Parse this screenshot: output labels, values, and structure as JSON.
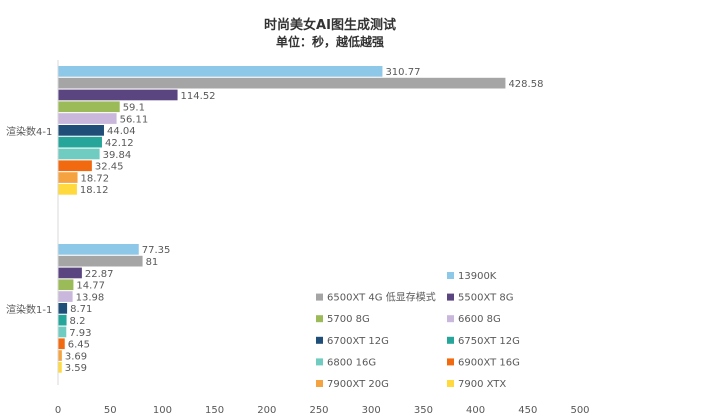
{
  "chart_data": {
    "type": "bar",
    "orientation": "horizontal",
    "title": "时尚美女AI图生成测试",
    "subtitle": "单位：秒，越低越强",
    "categories": [
      "渲染数4-1",
      "渲染数1-1"
    ],
    "xlim": [
      0,
      500
    ],
    "x_ticks": [
      "0",
      "50",
      "100",
      "150",
      "200",
      "250",
      "300",
      "350",
      "400",
      "450",
      "500"
    ],
    "grid": false,
    "legend_position": "bottom-right",
    "series": [
      {
        "name": "13900K",
        "color": "#8DC8E8",
        "values": [
          310.77,
          77.35
        ],
        "labels": [
          "310.77",
          "77.35"
        ]
      },
      {
        "name": "6500XT 4G 低显存模式",
        "color": "#A5A5A5",
        "values": [
          428.58,
          81
        ],
        "labels": [
          "428.58",
          "81"
        ]
      },
      {
        "name": "5500XT 8G",
        "color": "#5B4580",
        "values": [
          114.52,
          22.87
        ],
        "labels": [
          "114.52",
          "22.87"
        ]
      },
      {
        "name": "5700 8G",
        "color": "#9BBB59",
        "values": [
          59.1,
          14.77
        ],
        "labels": [
          "59.1",
          "14.77"
        ]
      },
      {
        "name": "6600 8G",
        "color": "#C9B8DC",
        "values": [
          56.11,
          13.98
        ],
        "labels": [
          "56.11",
          "13.98"
        ]
      },
      {
        "name": "6700XT 12G",
        "color": "#1F4E79",
        "values": [
          44.04,
          8.71
        ],
        "labels": [
          "44.04",
          "8.71"
        ]
      },
      {
        "name": "6750XT 12G",
        "color": "#26A69A",
        "values": [
          42.12,
          8.2
        ],
        "labels": [
          "42.12",
          "8.2"
        ]
      },
      {
        "name": "6800 16G",
        "color": "#70CBC0",
        "values": [
          39.84,
          7.93
        ],
        "labels": [
          "39.84",
          "7.93"
        ]
      },
      {
        "name": "6900XT 16G",
        "color": "#F26A10",
        "values": [
          32.45,
          6.45
        ],
        "labels": [
          "32.45",
          "6.45"
        ]
      },
      {
        "name": "7900XT 20G",
        "color": "#F5A340",
        "values": [
          18.72,
          3.69
        ],
        "labels": [
          "18.72",
          "3.69"
        ]
      },
      {
        "name": "7900 XTX",
        "color": "#FFD93D",
        "values": [
          18.12,
          3.59
        ],
        "labels": [
          "18.12",
          "3.59"
        ]
      }
    ]
  }
}
